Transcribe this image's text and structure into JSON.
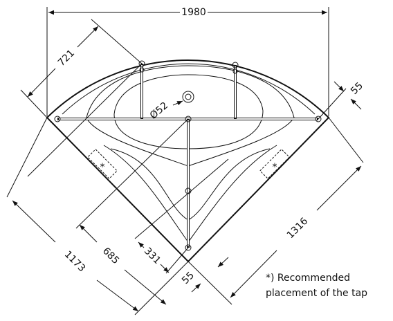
{
  "dimensions": {
    "width": "1980",
    "side_top": "721",
    "rim_top": "55",
    "drain": "Ø52",
    "side_right": "1316",
    "side_left": "1173",
    "depth_685": "685",
    "depth_331": "331",
    "rim_bottom": "55"
  },
  "tap_marks": [
    "*",
    "*"
  ],
  "note": {
    "line1": "*) Recommended",
    "line2": "placement of the tap"
  }
}
